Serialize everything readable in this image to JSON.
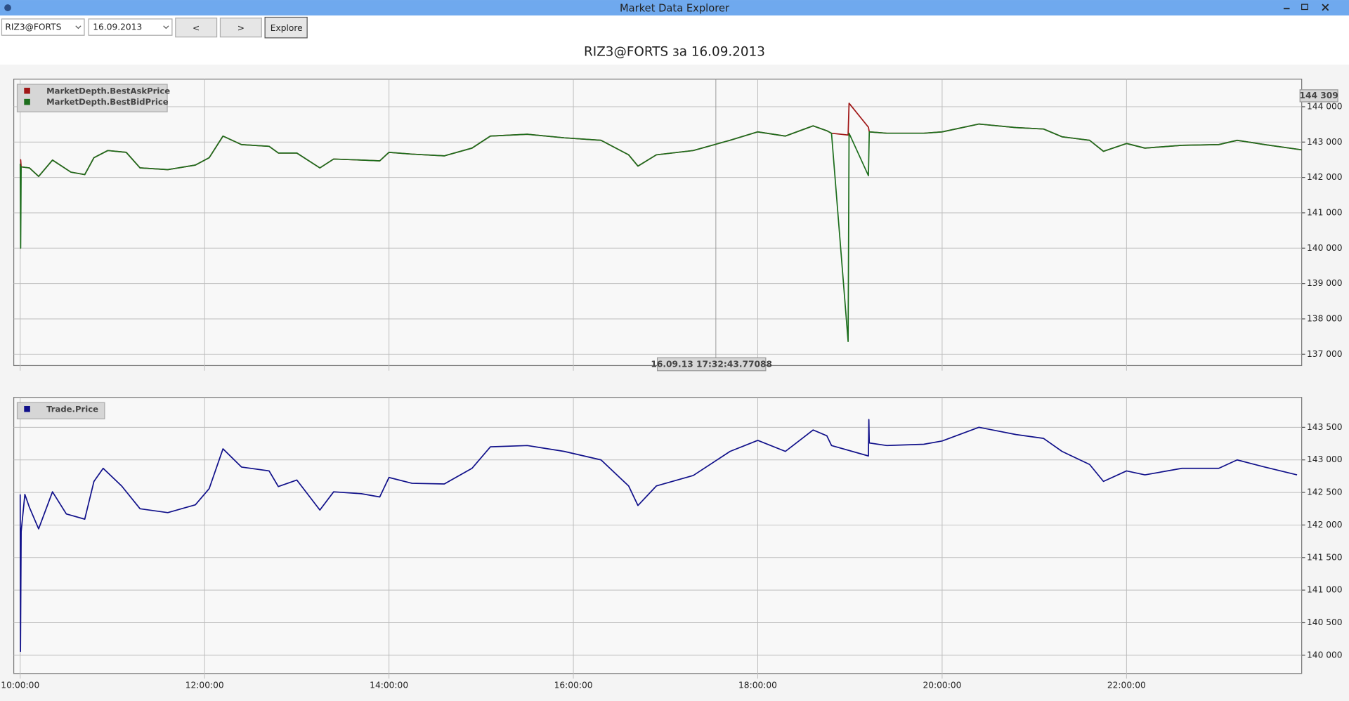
{
  "window": {
    "title": "Market Data Explorer"
  },
  "toolbar": {
    "security": "RIZ3@FORTS",
    "date": "16.09.2013",
    "prev": "<",
    "next": ">",
    "explore": "Explore"
  },
  "heading": "RIZ3@FORTS за 16.09.2013",
  "chart_data": [
    {
      "type": "line",
      "grid": true,
      "legend": "top-left",
      "xlim": [
        9.93,
        23.9
      ],
      "ylim": [
        136680,
        144780
      ],
      "yticks": [
        {
          "value": 137000,
          "label": "137 000"
        },
        {
          "value": 138000,
          "label": "138 000"
        },
        {
          "value": 139000,
          "label": "139 000"
        },
        {
          "value": 140000,
          "label": "140 000"
        },
        {
          "value": 141000,
          "label": "141 000"
        },
        {
          "value": 142000,
          "label": "142 000"
        },
        {
          "value": 143000,
          "label": "143 000"
        },
        {
          "value": 144000,
          "label": "144 000"
        }
      ],
      "cursor": {
        "value": 17.5455,
        "label": "16.09.13 17:32:43.77088"
      },
      "last_value": {
        "value": 144309,
        "label": "144 309"
      },
      "x": [
        10,
        10.005,
        10.01,
        10.1,
        10.2,
        10.35,
        10.55,
        10.7,
        10.8,
        10.95,
        11.15,
        11.3,
        11.6,
        11.9,
        12.05,
        12.2,
        12.4,
        12.7,
        12.8,
        13.0,
        13.25,
        13.4,
        13.7,
        13.9,
        14.0,
        14.25,
        14.6,
        14.9,
        15.1,
        15.5,
        15.9,
        16.3,
        16.6,
        16.7,
        16.9,
        17.3,
        17.7,
        18.0,
        18.3,
        18.6,
        18.75,
        18.8,
        18.98,
        18.99,
        19.2,
        19.21,
        19.4,
        19.8,
        20.0,
        20.4,
        20.8,
        21.1,
        21.3,
        21.6,
        21.75,
        22.0,
        22.2,
        22.6,
        23.0,
        23.2,
        23.5,
        23.9
      ],
      "series": [
        {
          "name": "MarketDepth.BestAskPrice",
          "color": "#a01616",
          "values": [
            142500,
            142500,
            142300,
            142270,
            142030,
            142490,
            142150,
            142080,
            142560,
            142760,
            142710,
            142270,
            142220,
            142350,
            142560,
            143170,
            142930,
            142880,
            142690,
            142690,
            142270,
            142520,
            142490,
            142470,
            142710,
            142660,
            142610,
            142830,
            143170,
            143220,
            143120,
            143050,
            142640,
            142320,
            142640,
            142760,
            143050,
            143290,
            143170,
            143460,
            143320,
            143250,
            143200,
            144100,
            143420,
            143290,
            143250,
            143250,
            143290,
            143510,
            143410,
            143370,
            143150,
            143050,
            142740,
            142960,
            142830,
            142910,
            142930,
            143050,
            142930,
            142780
          ]
        },
        {
          "name": "MarketDepth.BestBidPrice",
          "color": "#1d6e1d",
          "values": [
            142390,
            140000,
            142300,
            142270,
            142030,
            142490,
            142150,
            142080,
            142560,
            142760,
            142710,
            142270,
            142220,
            142350,
            142560,
            143170,
            142930,
            142880,
            142690,
            142690,
            142270,
            142520,
            142490,
            142470,
            142710,
            142660,
            142610,
            142830,
            143170,
            143220,
            143120,
            143050,
            142640,
            142320,
            142640,
            142760,
            143050,
            143290,
            143170,
            143460,
            143320,
            143250,
            137360,
            143250,
            142050,
            143290,
            143250,
            143250,
            143290,
            143510,
            143410,
            143370,
            143150,
            143050,
            142740,
            142960,
            142830,
            142910,
            142930,
            143050,
            142930,
            142780
          ]
        }
      ]
    },
    {
      "type": "line",
      "grid": true,
      "legend": "top-left",
      "xlim": [
        9.93,
        23.9
      ],
      "ylim": [
        139720,
        143960
      ],
      "xticks": [
        {
          "value": 10,
          "label": "10:00:00"
        },
        {
          "value": 12,
          "label": "12:00:00"
        },
        {
          "value": 14,
          "label": "14:00:00"
        },
        {
          "value": 16,
          "label": "16:00:00"
        },
        {
          "value": 18,
          "label": "18:00:00"
        },
        {
          "value": 20,
          "label": "20:00:00"
        },
        {
          "value": 22,
          "label": "22:00:00"
        }
      ],
      "yticks": [
        {
          "value": 140000,
          "label": "140 000"
        },
        {
          "value": 140500,
          "label": "140 500"
        },
        {
          "value": 141000,
          "label": "141 000"
        },
        {
          "value": 141500,
          "label": "141 500"
        },
        {
          "value": 142000,
          "label": "142 000"
        },
        {
          "value": 142500,
          "label": "142 500"
        },
        {
          "value": 143000,
          "label": "143 000"
        },
        {
          "value": 143500,
          "label": "143 500"
        }
      ],
      "x": [
        10,
        10.003,
        10.01,
        10.05,
        10.1,
        10.2,
        10.35,
        10.5,
        10.7,
        10.8,
        10.9,
        11.1,
        11.3,
        11.6,
        11.9,
        12.05,
        12.2,
        12.4,
        12.7,
        12.8,
        13.0,
        13.25,
        13.4,
        13.7,
        13.9,
        14.0,
        14.25,
        14.6,
        14.9,
        15.1,
        15.5,
        15.9,
        16.3,
        16.6,
        16.7,
        16.9,
        17.3,
        17.7,
        18.0,
        18.3,
        18.6,
        18.75,
        18.8,
        19.2,
        19.205,
        19.21,
        19.4,
        19.8,
        20.0,
        20.4,
        20.8,
        21.1,
        21.3,
        21.6,
        21.75,
        22.0,
        22.2,
        22.6,
        23.0,
        23.2,
        23.5,
        23.85
      ],
      "series": [
        {
          "name": "Trade.Price",
          "color": "#10108a",
          "values": [
            142470,
            140060,
            141900,
            142470,
            142270,
            141940,
            142510,
            142170,
            142090,
            142670,
            142870,
            142600,
            142250,
            142190,
            142310,
            142560,
            143170,
            142890,
            142830,
            142590,
            142690,
            142230,
            142510,
            142480,
            142430,
            142730,
            142640,
            142630,
            142870,
            143200,
            143220,
            143130,
            143000,
            142600,
            142300,
            142600,
            142760,
            143130,
            143300,
            143130,
            143460,
            143370,
            143220,
            143060,
            143620,
            143260,
            143220,
            143240,
            143290,
            143500,
            143390,
            143330,
            143130,
            142930,
            142670,
            142830,
            142770,
            142870,
            142870,
            143000,
            142890,
            142770
          ]
        }
      ]
    }
  ]
}
